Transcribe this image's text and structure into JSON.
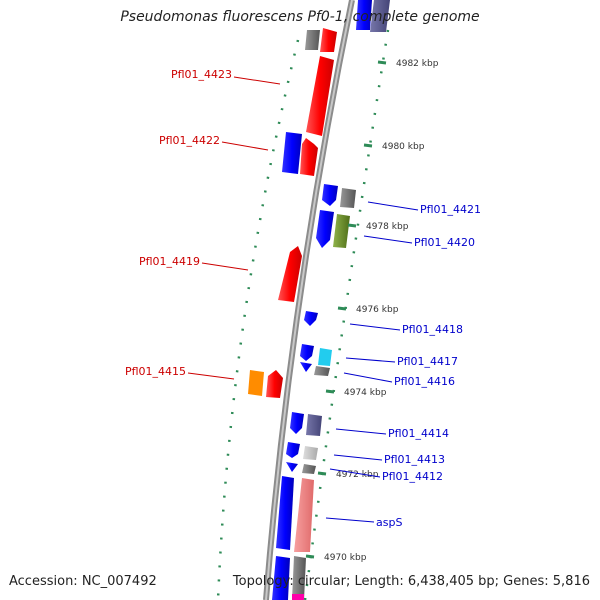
{
  "title": "Pseudomonas fluorescens Pf0-1, complete genome",
  "footer": {
    "accession": "Accession: NC_007492",
    "topology": "Topology: circular; Length: 6,438,405 bp; Genes: 5,816"
  },
  "colors": {
    "forward_label": "#cc0000",
    "reverse_label": "#0000cc",
    "red_gene": "#ff0000",
    "blue_gene": "#0000ff",
    "gray_gene": "#777777",
    "olive_gene": "#6b8e23",
    "cyan_gene": "#22ccee",
    "orange_gene": "#ff8c00",
    "pink_gene": "#f08080",
    "magenta_gene": "#ff00aa",
    "tick_green": "#2e8b57"
  },
  "ticks": [
    {
      "label": "4982 kbp"
    },
    {
      "label": "4980 kbp"
    },
    {
      "label": "4978 kbp"
    },
    {
      "label": "4976 kbp"
    },
    {
      "label": "4974 kbp"
    },
    {
      "label": "4972 kbp"
    },
    {
      "label": "4970 kbp"
    }
  ],
  "gene_labels": {
    "left": [
      "Pfl01_4423",
      "Pfl01_4422",
      "Pfl01_4419",
      "Pfl01_4415"
    ],
    "right": [
      "Pfl01_4421",
      "Pfl01_4420",
      "Pfl01_4418",
      "Pfl01_4417",
      "Pfl01_4416",
      "Pfl01_4414",
      "Pfl01_4413",
      "Pfl01_4412",
      "aspS"
    ]
  }
}
